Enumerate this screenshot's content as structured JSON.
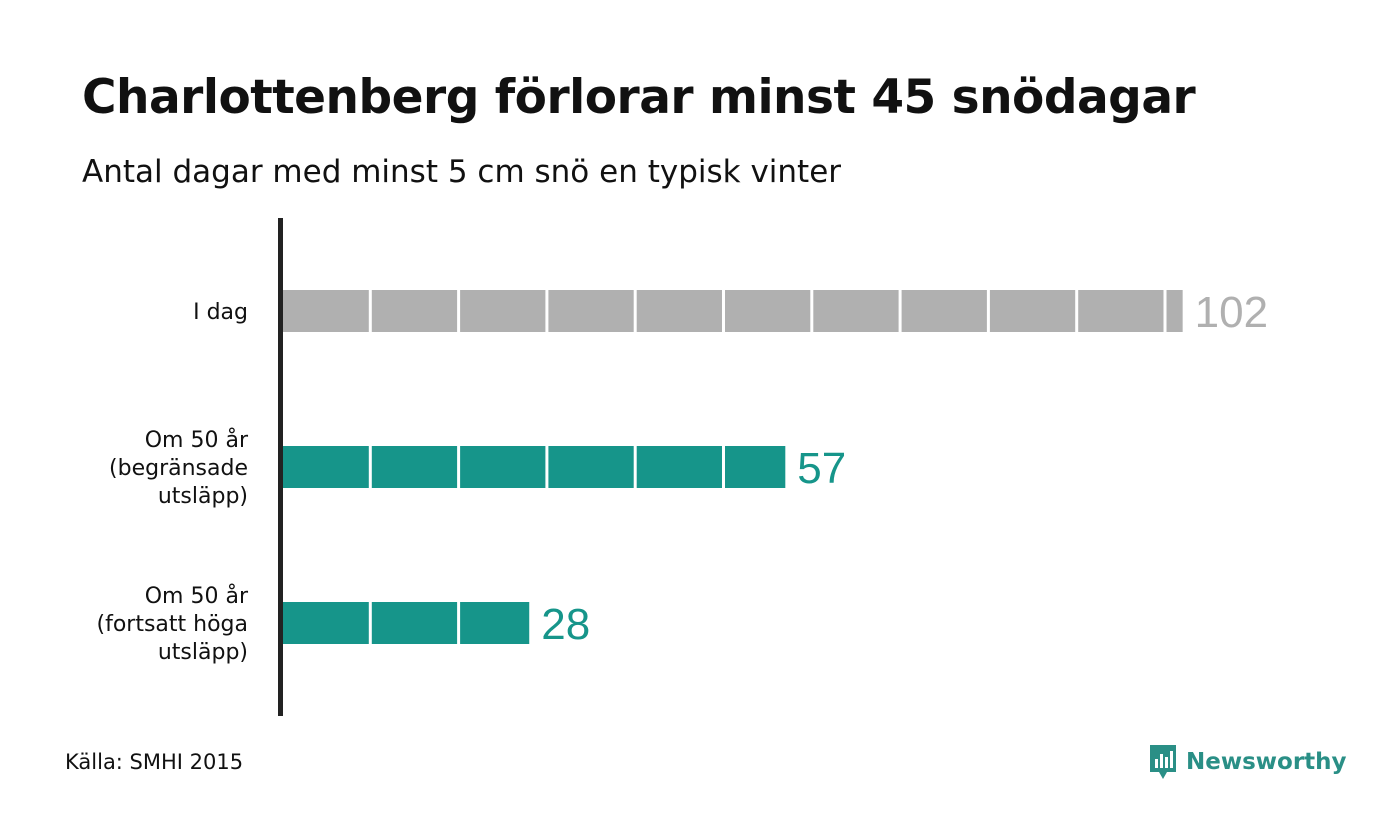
{
  "title": "Charlottenberg förlorar minst 45 snödagar",
  "subtitle": "Antal dagar med minst 5 cm snö en typisk vinter",
  "source": "Källa: SMHI 2015",
  "brand": {
    "name": "Newsworthy",
    "icon": "chart-speech-bubble-icon",
    "color": "#2a8f86"
  },
  "colors": {
    "today": "#b0b0b0",
    "future": "#16958a",
    "axis": "#222222"
  },
  "chart_data": {
    "type": "bar",
    "orientation": "horizontal",
    "categories": [
      [
        "I dag"
      ],
      [
        "Om 50 år",
        "(begränsade",
        "utsläpp)"
      ],
      [
        "Om 50 år",
        "(fortsatt höga",
        "utsläpp)"
      ]
    ],
    "values": [
      102,
      57,
      28
    ],
    "segment_size": 10,
    "xlim": [
      0,
      102
    ],
    "grid": false
  }
}
